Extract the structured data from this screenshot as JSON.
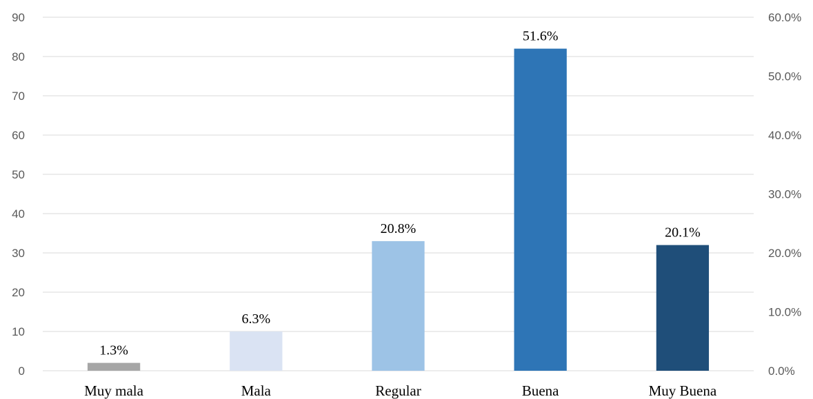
{
  "chart_data": {
    "type": "bar",
    "categories": [
      "Muy mala",
      "Mala",
      "Regular",
      "Buena",
      "Muy Buena"
    ],
    "values": [
      2,
      10,
      33,
      82,
      32
    ],
    "data_labels": [
      "1.3%",
      "6.3%",
      "20.8%",
      "51.6%",
      "20.1%"
    ],
    "colors": [
      "#a6a6a6",
      "#dae3f3",
      "#9dc3e6",
      "#2e75b6",
      "#1f4e79"
    ],
    "ylim": [
      0,
      90
    ],
    "y_ticks": [
      "0",
      "10",
      "20",
      "30",
      "40",
      "50",
      "60",
      "70",
      "80",
      "90"
    ],
    "y2lim": [
      0,
      60
    ],
    "y2_ticks": [
      "0.0%",
      "10.0%",
      "20.0%",
      "30.0%",
      "40.0%",
      "50.0%",
      "60.0%"
    ],
    "grid": true,
    "legend": "none"
  }
}
